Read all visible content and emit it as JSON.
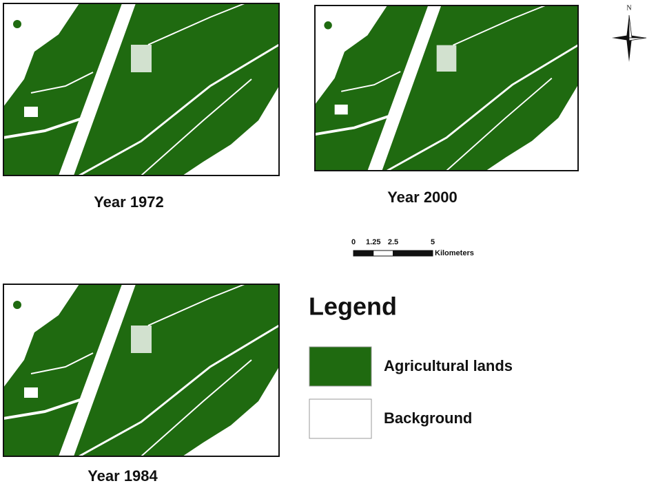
{
  "panels": [
    {
      "label": "Year 1972"
    },
    {
      "label": "Year 2000"
    },
    {
      "label": "Year 1984"
    }
  ],
  "north": "N",
  "scale_bar": {
    "ticks": [
      0,
      1.25,
      2.5,
      5
    ],
    "unit": "Kilometers"
  },
  "legend": {
    "title": "Legend",
    "items": [
      {
        "label": "Agricultural lands",
        "color": "#1f6a10"
      },
      {
        "label": "Background",
        "color": "#ffffff"
      }
    ]
  }
}
